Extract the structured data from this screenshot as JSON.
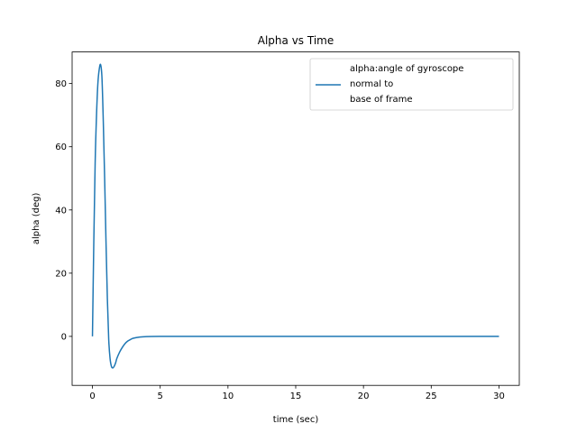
{
  "chart_data": {
    "type": "line",
    "title": "Alpha vs Time",
    "xlabel": "time (sec)",
    "ylabel": "alpha (deg)",
    "xlim": [
      -1.5,
      31.5
    ],
    "ylim": [
      -15.5,
      90
    ],
    "xticks": [
      0,
      5,
      10,
      15,
      20,
      25,
      30
    ],
    "yticks": [
      0,
      20,
      40,
      60,
      80
    ],
    "grid": false,
    "legend_position": "upper right",
    "series": [
      {
        "name": "alpha:angle of gyroscope normal to base of frame",
        "legend_lines": [
          "alpha:angle of gyroscope",
          "normal to",
          "base of frame"
        ],
        "color": "#1f77b4",
        "x": [
          0,
          0.1,
          0.2,
          0.3,
          0.4,
          0.5,
          0.6,
          0.7,
          0.8,
          0.9,
          1.0,
          1.1,
          1.2,
          1.3,
          1.4,
          1.5,
          1.6,
          1.7,
          1.8,
          2.0,
          2.2,
          2.4,
          2.6,
          2.8,
          3.0,
          3.5,
          4.0,
          5.0,
          6.0,
          10.0,
          15.0,
          20.0,
          25.0,
          30.0
        ],
        "y": [
          0,
          30,
          55,
          70,
          80,
          84.5,
          86,
          82,
          68,
          50,
          30,
          12,
          -1,
          -7,
          -9.5,
          -10,
          -9.5,
          -8.5,
          -7,
          -5,
          -3.5,
          -2.3,
          -1.5,
          -1,
          -0.6,
          -0.2,
          -0.05,
          0,
          0,
          0,
          0,
          0,
          0,
          0
        ]
      }
    ]
  }
}
